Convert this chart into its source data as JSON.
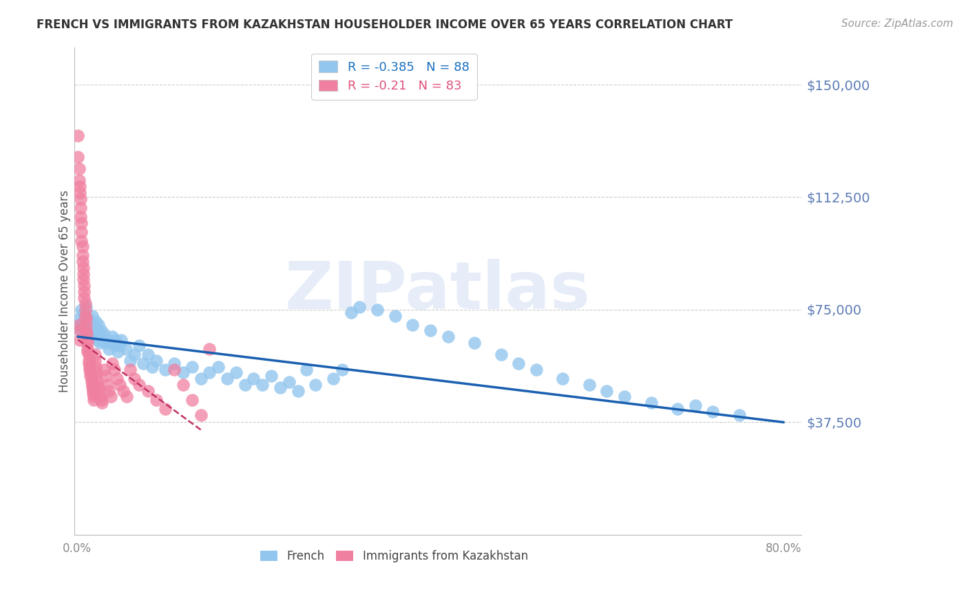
{
  "title": "FRENCH VS IMMIGRANTS FROM KAZAKHSTAN HOUSEHOLDER INCOME OVER 65 YEARS CORRELATION CHART",
  "source": "Source: ZipAtlas.com",
  "ylabel": "Householder Income Over 65 years",
  "ytick_labels": [
    "$150,000",
    "$112,500",
    "$75,000",
    "$37,500"
  ],
  "ytick_values": [
    150000,
    112500,
    75000,
    37500
  ],
  "ymin": 0,
  "ymax": 162500,
  "xmin": -0.003,
  "xmax": 0.82,
  "french_R": -0.385,
  "french_N": 88,
  "kazakhstan_R": -0.21,
  "kazakhstan_N": 83,
  "french_color": "#93C6EE",
  "kazakhstan_color": "#F080A0",
  "french_line_color": "#1A5FB0",
  "kazakhstan_line_color": "#C03060",
  "watermark_text": "ZIPatlas",
  "background_color": "#FFFFFF",
  "grid_color": "#CCCCCC",
  "title_color": "#333333",
  "axis_label_color": "#5B7BB5",
  "legend_blue_color": "#1A6FBF",
  "legend_pink_color": "#E0507A",
  "french_line_x": [
    0.001,
    0.8
  ],
  "french_line_y": [
    66000,
    37500
  ],
  "kazakhstan_line_x": [
    0.001,
    0.14
  ],
  "kazakhstan_line_y": [
    65000,
    35000
  ],
  "french_scatter_x": [
    0.002,
    0.003,
    0.004,
    0.005,
    0.006,
    0.007,
    0.007,
    0.008,
    0.009,
    0.01,
    0.01,
    0.011,
    0.012,
    0.013,
    0.014,
    0.015,
    0.016,
    0.017,
    0.018,
    0.019,
    0.02,
    0.021,
    0.022,
    0.023,
    0.024,
    0.025,
    0.026,
    0.027,
    0.028,
    0.03,
    0.032,
    0.034,
    0.036,
    0.038,
    0.04,
    0.042,
    0.044,
    0.046,
    0.048,
    0.05,
    0.055,
    0.06,
    0.065,
    0.07,
    0.075,
    0.08,
    0.085,
    0.09,
    0.1,
    0.11,
    0.12,
    0.13,
    0.14,
    0.15,
    0.16,
    0.17,
    0.18,
    0.19,
    0.2,
    0.21,
    0.22,
    0.23,
    0.24,
    0.25,
    0.26,
    0.27,
    0.29,
    0.3,
    0.31,
    0.32,
    0.34,
    0.36,
    0.38,
    0.4,
    0.42,
    0.45,
    0.48,
    0.5,
    0.52,
    0.55,
    0.58,
    0.6,
    0.62,
    0.65,
    0.68,
    0.7,
    0.72,
    0.75
  ],
  "french_scatter_y": [
    72000,
    70000,
    68000,
    75000,
    71000,
    69000,
    74000,
    72000,
    68000,
    71000,
    76000,
    70000,
    68000,
    72000,
    69000,
    71000,
    67000,
    73000,
    70000,
    68000,
    66000,
    71000,
    68000,
    65000,
    70000,
    67000,
    64000,
    68000,
    65000,
    67000,
    64000,
    65000,
    62000,
    64000,
    66000,
    63000,
    65000,
    61000,
    63000,
    65000,
    62000,
    58000,
    60000,
    63000,
    57000,
    60000,
    56000,
    58000,
    55000,
    57000,
    54000,
    56000,
    52000,
    54000,
    56000,
    52000,
    54000,
    50000,
    52000,
    50000,
    53000,
    49000,
    51000,
    48000,
    55000,
    50000,
    52000,
    55000,
    74000,
    76000,
    75000,
    73000,
    70000,
    68000,
    66000,
    64000,
    60000,
    57000,
    55000,
    52000,
    50000,
    48000,
    46000,
    44000,
    42000,
    43000,
    41000,
    40000
  ],
  "kazakhstan_scatter_x": [
    0.001,
    0.001,
    0.002,
    0.002,
    0.003,
    0.003,
    0.004,
    0.004,
    0.004,
    0.005,
    0.005,
    0.005,
    0.006,
    0.006,
    0.006,
    0.007,
    0.007,
    0.007,
    0.008,
    0.008,
    0.008,
    0.009,
    0.009,
    0.009,
    0.01,
    0.01,
    0.01,
    0.011,
    0.011,
    0.012,
    0.012,
    0.012,
    0.013,
    0.013,
    0.013,
    0.014,
    0.014,
    0.015,
    0.015,
    0.016,
    0.016,
    0.017,
    0.017,
    0.018,
    0.018,
    0.019,
    0.019,
    0.02,
    0.02,
    0.021,
    0.021,
    0.022,
    0.023,
    0.024,
    0.025,
    0.026,
    0.027,
    0.028,
    0.03,
    0.032,
    0.034,
    0.036,
    0.038,
    0.04,
    0.042,
    0.045,
    0.048,
    0.052,
    0.056,
    0.06,
    0.065,
    0.07,
    0.08,
    0.09,
    0.1,
    0.11,
    0.12,
    0.13,
    0.14,
    0.15,
    0.002,
    0.003,
    0.003
  ],
  "kazakhstan_scatter_y": [
    133000,
    126000,
    122000,
    118000,
    116000,
    114000,
    112000,
    109000,
    106000,
    104000,
    101000,
    98000,
    96000,
    93000,
    91000,
    89000,
    87000,
    85000,
    83000,
    81000,
    79000,
    77000,
    75000,
    73000,
    72000,
    70000,
    68000,
    67000,
    65000,
    64000,
    62000,
    61000,
    60000,
    58000,
    57000,
    56000,
    55000,
    54000,
    53000,
    52000,
    51000,
    50000,
    49000,
    48000,
    47000,
    46000,
    45000,
    60000,
    58000,
    56000,
    54000,
    52000,
    50000,
    49000,
    48000,
    46000,
    45000,
    44000,
    55000,
    53000,
    50000,
    48000,
    46000,
    57000,
    55000,
    52000,
    50000,
    48000,
    46000,
    55000,
    52000,
    50000,
    48000,
    45000,
    42000,
    55000,
    50000,
    45000,
    40000,
    62000,
    70000,
    68000,
    65000
  ]
}
